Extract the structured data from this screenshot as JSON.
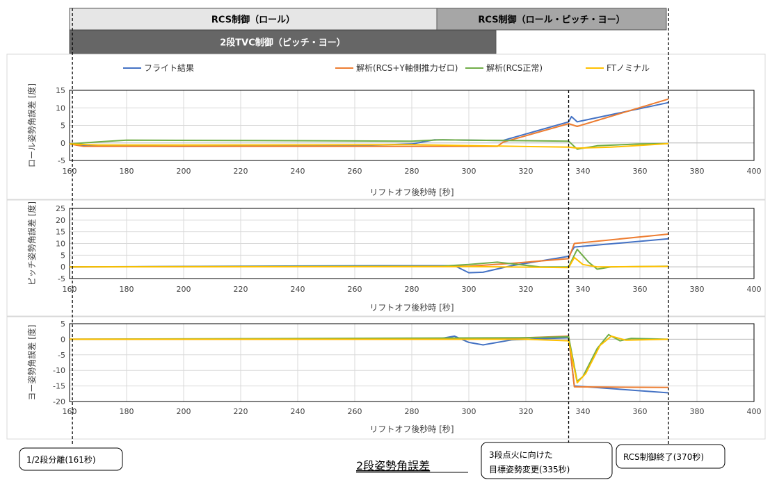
{
  "phase_bars": [
    {
      "label": "RCS制御（ロール）",
      "start": 100,
      "end": 628,
      "row": 0,
      "fill": "#e6e6e6",
      "text_color": "#000000"
    },
    {
      "label": "RCS制御（ロール・ピッチ・ヨー）",
      "start": 628,
      "end": 958,
      "row": 0,
      "fill": "#a6a6a6",
      "text_color": "#000000"
    },
    {
      "label": "2段TVC制御（ピッチ・ヨー）",
      "start": 100,
      "end": 713,
      "row": 1,
      "fill": "#666666",
      "text_color": "#ffffff"
    }
  ],
  "legend": [
    {
      "label": "フライト結果",
      "color": "#4472c4"
    },
    {
      "label": "解析(RCS+Y軸側推力ゼロ)",
      "color": "#ed7d31"
    },
    {
      "label": "解析(RCS正常)",
      "color": "#70ad47"
    },
    {
      "label": "FTノミナル",
      "color": "#ffc000"
    }
  ],
  "callouts": {
    "separation": "1/2段分離(161秒)",
    "attitude_change_line1": "3段点火に向けた",
    "attitude_change_line2": "目標姿勢変更(335秒)",
    "rcs_end": "RCS制御終了(370秒)",
    "caption": "2段姿勢角誤差"
  },
  "event_lines": [
    161,
    335,
    370
  ],
  "chart_data": [
    {
      "type": "line",
      "ylabel": "ロール姿勢角誤差 [度]",
      "xlabel": "リフトオフ後秒時 [秒]",
      "xlim": [
        160,
        400
      ],
      "ylim": [
        -5,
        15
      ],
      "yticks": [
        -5,
        0,
        5,
        10,
        15
      ],
      "xticks": [
        160,
        180,
        200,
        220,
        240,
        260,
        280,
        300,
        320,
        340,
        360,
        380,
        400
      ],
      "grid": true,
      "series": [
        {
          "name": "フライト結果",
          "color": "#4472c4",
          "points": [
            [
              160,
              -0.3
            ],
            [
              165,
              -0.8
            ],
            [
              200,
              -1.0
            ],
            [
              260,
              -0.8
            ],
            [
              280,
              -0.3
            ],
            [
              288,
              0.9
            ],
            [
              300,
              0.8
            ],
            [
              312,
              0.7
            ],
            [
              335,
              6.0
            ],
            [
              336,
              7.5
            ],
            [
              338,
              6.0
            ],
            [
              370,
              11.5
            ]
          ]
        },
        {
          "name": "解析(RCS+Y軸側推力ゼロ)",
          "color": "#ed7d31",
          "points": [
            [
              160,
              -0.3
            ],
            [
              165,
              -1.0
            ],
            [
              280,
              -1.0
            ],
            [
              310,
              -1.0
            ],
            [
              312,
              0.2
            ],
            [
              335,
              5.5
            ],
            [
              338,
              4.7
            ],
            [
              370,
              12.5
            ]
          ]
        },
        {
          "name": "解析(RCS正常)",
          "color": "#70ad47",
          "points": [
            [
              160,
              -0.3
            ],
            [
              170,
              0.3
            ],
            [
              180,
              0.8
            ],
            [
              280,
              0.5
            ],
            [
              290,
              0.9
            ],
            [
              300,
              0.8
            ],
            [
              335,
              0.5
            ],
            [
              338,
              -1.8
            ],
            [
              345,
              -0.8
            ],
            [
              360,
              -0.3
            ],
            [
              370,
              -0.2
            ]
          ]
        },
        {
          "name": "FTノミナル",
          "color": "#ffc000",
          "points": [
            [
              160,
              -0.3
            ],
            [
              170,
              -0.6
            ],
            [
              200,
              -0.6
            ],
            [
              280,
              -0.5
            ],
            [
              335,
              -1.2
            ],
            [
              338,
              -1.5
            ],
            [
              350,
              -1.2
            ],
            [
              370,
              -0.2
            ]
          ]
        }
      ]
    },
    {
      "type": "line",
      "ylabel": "ピッチ姿勢角誤差 [度]",
      "xlabel": "リフトオフ後秒時 [秒]",
      "xlim": [
        160,
        400
      ],
      "ylim": [
        -5,
        25
      ],
      "yticks": [
        -5,
        0,
        5,
        10,
        15,
        20,
        25
      ],
      "xticks": [
        160,
        180,
        200,
        220,
        240,
        260,
        280,
        300,
        320,
        340,
        360,
        380,
        400
      ],
      "grid": true,
      "series": [
        {
          "name": "フライト結果",
          "color": "#4472c4",
          "points": [
            [
              160,
              0
            ],
            [
              270,
              0.5
            ],
            [
              295,
              0.5
            ],
            [
              300,
              -2.5
            ],
            [
              305,
              -2.3
            ],
            [
              315,
              0.5
            ],
            [
              335,
              4.5
            ],
            [
              337,
              8.5
            ],
            [
              370,
              12
            ]
          ]
        },
        {
          "name": "解析(RCS+Y軸側推力ゼロ)",
          "color": "#ed7d31",
          "points": [
            [
              160,
              0
            ],
            [
              300,
              0.3
            ],
            [
              315,
              1.5
            ],
            [
              335,
              3.5
            ],
            [
              337,
              10
            ],
            [
              370,
              14
            ]
          ]
        },
        {
          "name": "解析(RCS正常)",
          "color": "#70ad47",
          "points": [
            [
              160,
              0
            ],
            [
              290,
              0.3
            ],
            [
              300,
              1.0
            ],
            [
              310,
              2.0
            ],
            [
              325,
              0
            ],
            [
              335,
              0
            ],
            [
              338,
              7.5
            ],
            [
              342,
              2
            ],
            [
              345,
              -1
            ],
            [
              350,
              0
            ],
            [
              370,
              0.3
            ]
          ]
        },
        {
          "name": "FTノミナル",
          "color": "#ffc000",
          "points": [
            [
              160,
              0
            ],
            [
              300,
              0.1
            ],
            [
              335,
              -0.3
            ],
            [
              337,
              4
            ],
            [
              340,
              1
            ],
            [
              345,
              0
            ],
            [
              370,
              0.2
            ]
          ]
        }
      ]
    },
    {
      "type": "line",
      "ylabel": "ヨー姿勢角誤差 [度]",
      "xlabel": "リフトオフ後秒時 [秒]",
      "xlim": [
        160,
        400
      ],
      "ylim": [
        -20,
        5
      ],
      "yticks": [
        -20,
        -15,
        -10,
        -5,
        0,
        5
      ],
      "xticks": [
        160,
        180,
        200,
        220,
        240,
        260,
        280,
        300,
        320,
        340,
        360,
        380,
        400
      ],
      "grid": true,
      "series": [
        {
          "name": "フライト結果",
          "color": "#4472c4",
          "points": [
            [
              160,
              0
            ],
            [
              290,
              0.2
            ],
            [
              295,
              1
            ],
            [
              300,
              -1
            ],
            [
              305,
              -1.8
            ],
            [
              315,
              -0.2
            ],
            [
              335,
              0.5
            ],
            [
              337,
              -15
            ],
            [
              370,
              -17.2
            ]
          ]
        },
        {
          "name": "解析(RCS+Y軸側推力ゼロ)",
          "color": "#ed7d31",
          "points": [
            [
              160,
              0
            ],
            [
              300,
              0
            ],
            [
              320,
              0.5
            ],
            [
              335,
              1
            ],
            [
              337,
              -15.3
            ],
            [
              370,
              -15.5
            ]
          ]
        },
        {
          "name": "解析(RCS正常)",
          "color": "#70ad47",
          "points": [
            [
              160,
              0
            ],
            [
              320,
              0.5
            ],
            [
              335,
              0.8
            ],
            [
              338,
              -13.5
            ],
            [
              340,
              -12
            ],
            [
              345,
              -3
            ],
            [
              349,
              1.5
            ],
            [
              353,
              -0.5
            ],
            [
              357,
              0.3
            ],
            [
              370,
              0
            ]
          ]
        },
        {
          "name": "FTノミナル",
          "color": "#ffc000",
          "points": [
            [
              160,
              0
            ],
            [
              320,
              0
            ],
            [
              335,
              -0.5
            ],
            [
              338,
              -14
            ],
            [
              341,
              -11
            ],
            [
              346,
              -2
            ],
            [
              350,
              1
            ],
            [
              355,
              -0.3
            ],
            [
              370,
              0
            ]
          ]
        }
      ]
    }
  ]
}
